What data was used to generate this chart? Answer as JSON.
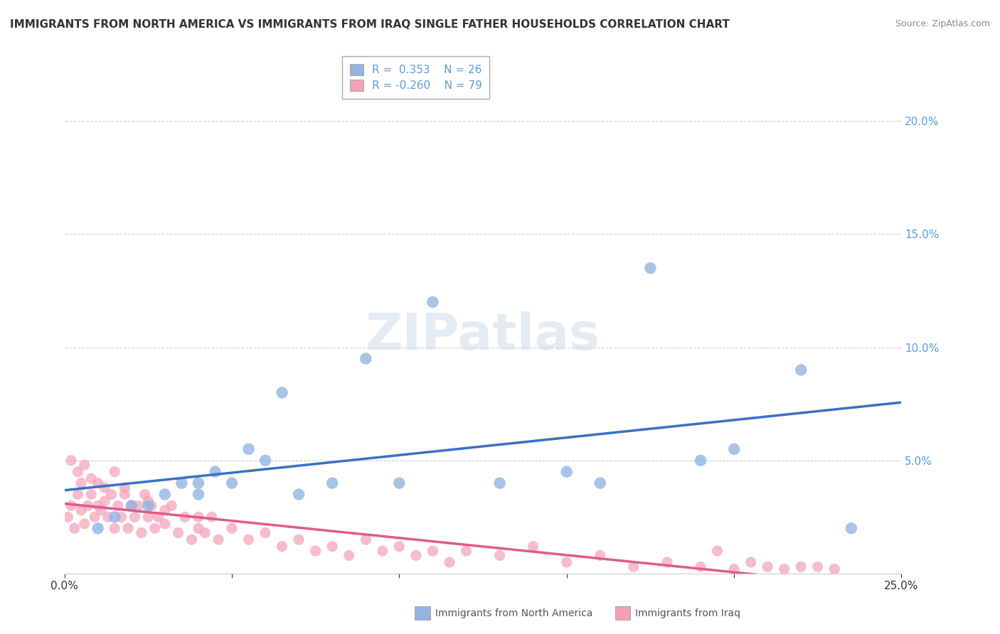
{
  "title": "IMMIGRANTS FROM NORTH AMERICA VS IMMIGRANTS FROM IRAQ SINGLE FATHER HOUSEHOLDS CORRELATION CHART",
  "source": "Source: ZipAtlas.com",
  "ylabel": "Single Father Households",
  "xlim": [
    0.0,
    0.25
  ],
  "ylim": [
    0.0,
    0.21
  ],
  "blue_color": "#92b4e3",
  "pink_color": "#f4a0b5",
  "blue_line_color": "#3a6fc4",
  "pink_line_color": "#e05a8a",
  "blue_scatter_x": [
    0.01,
    0.015,
    0.02,
    0.025,
    0.03,
    0.035,
    0.04,
    0.04,
    0.045,
    0.05,
    0.055,
    0.06,
    0.065,
    0.07,
    0.08,
    0.09,
    0.1,
    0.11,
    0.13,
    0.15,
    0.16,
    0.175,
    0.19,
    0.2,
    0.22,
    0.235
  ],
  "blue_scatter_y": [
    0.02,
    0.025,
    0.03,
    0.03,
    0.035,
    0.04,
    0.035,
    0.04,
    0.045,
    0.04,
    0.055,
    0.05,
    0.08,
    0.035,
    0.04,
    0.095,
    0.04,
    0.12,
    0.04,
    0.045,
    0.04,
    0.135,
    0.05,
    0.055,
    0.09,
    0.02
  ],
  "pink_scatter_x": [
    0.001,
    0.002,
    0.003,
    0.004,
    0.005,
    0.005,
    0.006,
    0.007,
    0.008,
    0.009,
    0.01,
    0.01,
    0.011,
    0.012,
    0.013,
    0.014,
    0.015,
    0.015,
    0.016,
    0.017,
    0.018,
    0.019,
    0.02,
    0.021,
    0.022,
    0.023,
    0.024,
    0.025,
    0.026,
    0.027,
    0.028,
    0.03,
    0.032,
    0.034,
    0.036,
    0.038,
    0.04,
    0.042,
    0.044,
    0.046,
    0.05,
    0.055,
    0.06,
    0.065,
    0.07,
    0.075,
    0.08,
    0.085,
    0.09,
    0.095,
    0.1,
    0.105,
    0.11,
    0.115,
    0.12,
    0.13,
    0.14,
    0.15,
    0.16,
    0.17,
    0.18,
    0.19,
    0.195,
    0.2,
    0.205,
    0.21,
    0.215,
    0.22,
    0.225,
    0.23,
    0.002,
    0.004,
    0.006,
    0.008,
    0.012,
    0.018,
    0.025,
    0.03,
    0.04
  ],
  "pink_scatter_y": [
    0.025,
    0.03,
    0.02,
    0.035,
    0.028,
    0.04,
    0.022,
    0.03,
    0.035,
    0.025,
    0.03,
    0.04,
    0.028,
    0.032,
    0.025,
    0.035,
    0.02,
    0.045,
    0.03,
    0.025,
    0.035,
    0.02,
    0.03,
    0.025,
    0.03,
    0.018,
    0.035,
    0.025,
    0.03,
    0.02,
    0.025,
    0.022,
    0.03,
    0.018,
    0.025,
    0.015,
    0.02,
    0.018,
    0.025,
    0.015,
    0.02,
    0.015,
    0.018,
    0.012,
    0.015,
    0.01,
    0.012,
    0.008,
    0.015,
    0.01,
    0.012,
    0.008,
    0.01,
    0.005,
    0.01,
    0.008,
    0.012,
    0.005,
    0.008,
    0.003,
    0.005,
    0.003,
    0.01,
    0.002,
    0.005,
    0.003,
    0.002,
    0.003,
    0.003,
    0.002,
    0.05,
    0.045,
    0.048,
    0.042,
    0.038,
    0.038,
    0.032,
    0.028,
    0.025
  ]
}
